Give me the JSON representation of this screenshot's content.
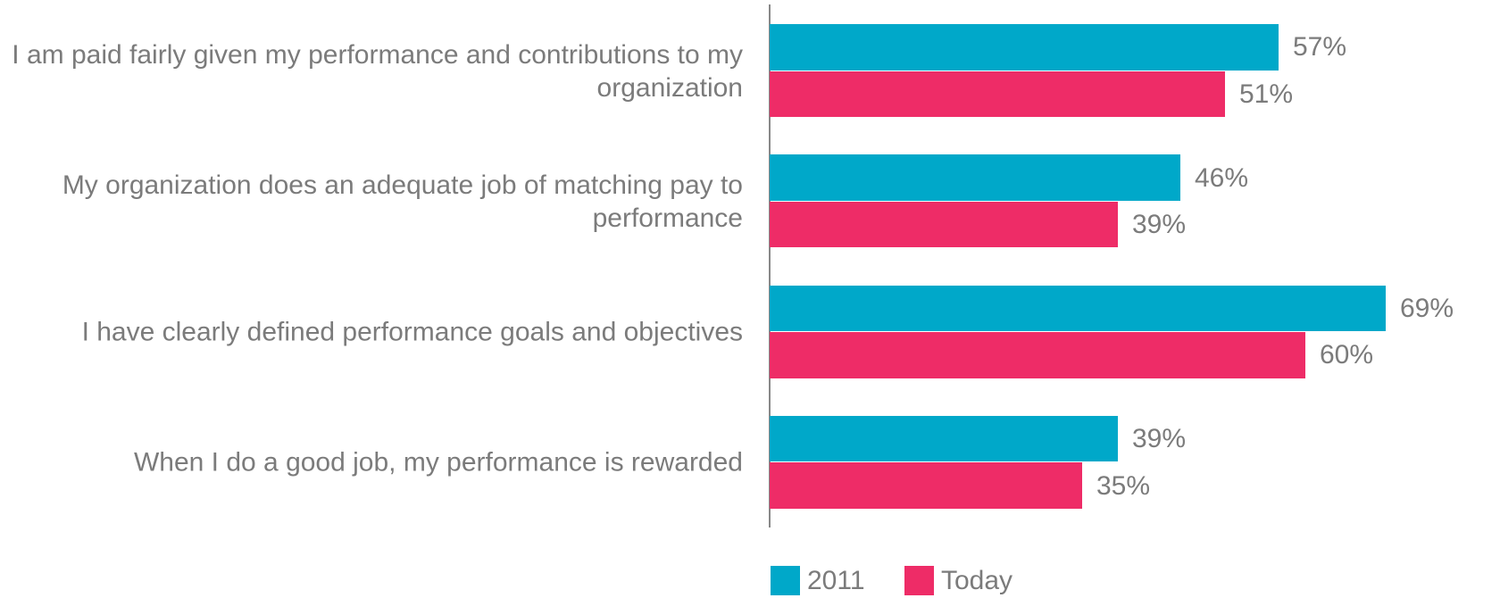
{
  "chart_data": {
    "type": "hbar",
    "categories": [
      "I am paid fairly given my performance and contributions to my organization",
      "My organization does an adequate job of matching pay to performance",
      "I have clearly defined performance goals and objectives",
      "When I do a good job, my performance is rewarded"
    ],
    "series": [
      {
        "name": "2011",
        "color": "#00a8c9",
        "values": [
          57,
          46,
          69,
          39
        ],
        "value_labels": [
          "57%",
          "46%",
          "69%",
          "39%"
        ]
      },
      {
        "name": "Today",
        "color": "#ee2c67",
        "values": [
          51,
          39,
          60,
          35
        ],
        "value_labels": [
          "51%",
          "39%",
          "60%",
          "35%"
        ]
      }
    ],
    "xlim": [
      0,
      70
    ]
  }
}
